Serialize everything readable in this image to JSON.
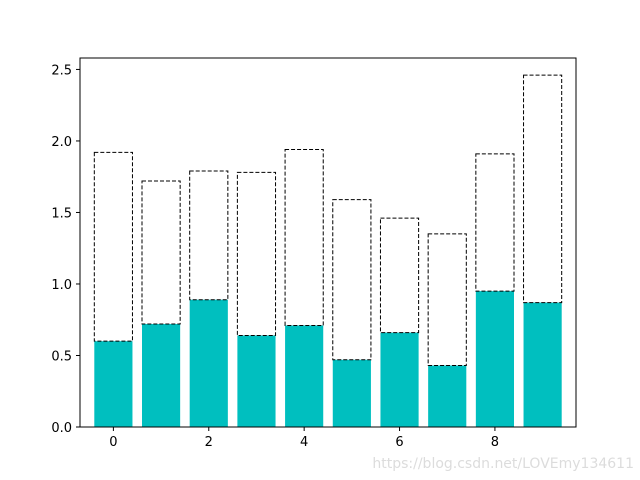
{
  "chart_data": {
    "type": "bar",
    "stacked": true,
    "x": [
      0,
      1,
      2,
      3,
      4,
      5,
      6,
      7,
      8,
      9
    ],
    "xticks": [
      "0",
      "2",
      "4",
      "6",
      "8"
    ],
    "yticks": [
      "0.0",
      "0.5",
      "1.0",
      "1.5",
      "2.0",
      "2.5"
    ],
    "xlim": [
      -0.7,
      9.7
    ],
    "ylim": [
      0,
      2.58
    ],
    "title": "",
    "xlabel": "",
    "ylabel": "",
    "grid": false,
    "series": [
      {
        "style": "solid",
        "color": "#00bfbf",
        "values": [
          0.6,
          0.72,
          0.89,
          0.64,
          0.71,
          0.47,
          0.66,
          0.43,
          0.95,
          0.87
        ]
      },
      {
        "style": "dashed-outline",
        "color": "#000000",
        "values": [
          1.32,
          1.0,
          0.9,
          1.14,
          1.23,
          1.12,
          0.8,
          0.92,
          0.96,
          1.59
        ]
      }
    ]
  },
  "watermark": "https://blog.csdn.net/LOVEmy134611"
}
